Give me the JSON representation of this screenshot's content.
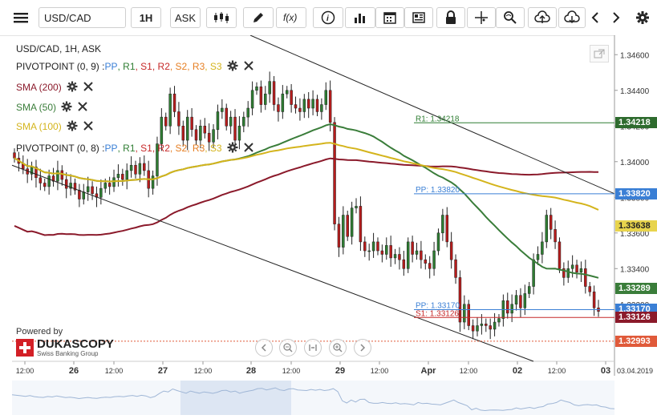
{
  "toolbar": {
    "instrument": "USD/CAD",
    "period": "1H",
    "side": "ASK"
  },
  "chart_title": "USD/CAD, 1H, ASK",
  "indicators": [
    {
      "name": "PIVOTPOINT (0, 9)",
      "color": "#222222",
      "parts": [
        "PP",
        "R1",
        "S1",
        "R2",
        "S2",
        "R3",
        "S3"
      ]
    },
    {
      "name": "SMA (200)",
      "color": "#8b1a2b"
    },
    {
      "name": "SMA (50)",
      "color": "#3a7d3a"
    },
    {
      "name": "SMA (100)",
      "color": "#d4b41c"
    },
    {
      "name": "PIVOTPOINT (0, 8)",
      "color": "#222222",
      "parts": [
        "PP",
        "R1",
        "S1",
        "R2",
        "S2",
        "R3",
        "S3"
      ]
    }
  ],
  "pivot_colors": {
    "PP": "#3a7fd5",
    "R1": "#2e7d32",
    "S1": "#c62828",
    "R2": "#c62828",
    "S2": "#e67e22",
    "R3": "#e67e22",
    "S3": "#d4b41c"
  },
  "level_labels": {
    "r1": "R1: 1.34218",
    "pp": "PP: 1.33820",
    "pp2": "PP: 1.33170",
    "s1": "S1: 1.33126"
  },
  "price_axis": {
    "ticks": [
      "1.34600",
      "1.34400",
      "1.34200",
      "1.34000",
      "1.33800",
      "1.33600",
      "1.33400",
      "1.33200"
    ]
  },
  "price_tags": [
    {
      "value": "1.34218",
      "bg": "#2e6b2e",
      "fg": "#ffffff"
    },
    {
      "value": "1.33820",
      "bg": "#3a7fd5",
      "fg": "#ffffff"
    },
    {
      "value": "1.33638",
      "bg": "#e8d44d",
      "fg": "#222222"
    },
    {
      "value": "1.33289",
      "bg": "#3a7d3a",
      "fg": "#ffffff"
    },
    {
      "value": "1.33170",
      "bg": "#3a7fd5",
      "fg": "#ffffff"
    },
    {
      "value": "1.33126",
      "bg": "#8b1a2b",
      "fg": "#ffffff"
    },
    {
      "value": "1.32993",
      "bg": "#e05a3a",
      "fg": "#ffffff"
    }
  ],
  "time_axis": {
    "labels": [
      "12:00",
      "26",
      "12:00",
      "27",
      "12:00",
      "28",
      "12:00",
      "29",
      "12:00",
      "Apr",
      "12:00",
      "02",
      "12:00",
      "03"
    ],
    "date": "03.04.2019"
  },
  "branding": {
    "powered_by": "Powered by",
    "name": "DUKASCOPY",
    "tagline": "Swiss Banking Group"
  },
  "chart_data": {
    "type": "candlestick",
    "symbol": "USD/CAD",
    "timeframe": "1H",
    "ylim": [
      1.3288,
      1.347
    ],
    "series_close": [
      1.3402,
      1.3399,
      1.3396,
      1.3393,
      1.3397,
      1.3391,
      1.3388,
      1.3386,
      1.3392,
      1.3389,
      1.3395,
      1.339,
      1.3385,
      1.3388,
      1.3384,
      1.3379,
      1.3383,
      1.3386,
      1.3382,
      1.338,
      1.3385,
      1.3388,
      1.3386,
      1.3391,
      1.3393,
      1.339,
      1.3395,
      1.3398,
      1.3393,
      1.3399,
      1.3395,
      1.3385,
      1.3392,
      1.341,
      1.3425,
      1.342,
      1.3438,
      1.3428,
      1.342,
      1.3412,
      1.3425,
      1.3418,
      1.3412,
      1.342,
      1.3416,
      1.3411,
      1.3418,
      1.3428,
      1.343,
      1.342,
      1.3425,
      1.3412,
      1.342,
      1.3425,
      1.343,
      1.344,
      1.3442,
      1.3432,
      1.3438,
      1.3445,
      1.3432,
      1.3428,
      1.3438,
      1.344,
      1.3432,
      1.343,
      1.3428,
      1.3435,
      1.343,
      1.3435,
      1.3428,
      1.3432,
      1.344,
      1.3422,
      1.3365,
      1.3352,
      1.337,
      1.3358,
      1.3374,
      1.3375,
      1.3355,
      1.335,
      1.335,
      1.3355,
      1.335,
      1.3348,
      1.3353,
      1.3346,
      1.3348,
      1.3345,
      1.334,
      1.3355,
      1.3348,
      1.335,
      1.3345,
      1.3343,
      1.334,
      1.335,
      1.336,
      1.337,
      1.3355,
      1.3345,
      1.3335,
      1.331,
      1.332,
      1.3308,
      1.3305,
      1.3308,
      1.3309,
      1.3308,
      1.3306,
      1.331,
      1.3312,
      1.3322,
      1.3315,
      1.332,
      1.3325,
      1.3318,
      1.3326,
      1.333,
      1.3345,
      1.3348,
      1.3355,
      1.337,
      1.3362,
      1.3355,
      1.334,
      1.3335,
      1.334,
      1.3342,
      1.3338,
      1.334,
      1.333,
      1.3327,
      1.3318,
      1.3316
    ]
  }
}
